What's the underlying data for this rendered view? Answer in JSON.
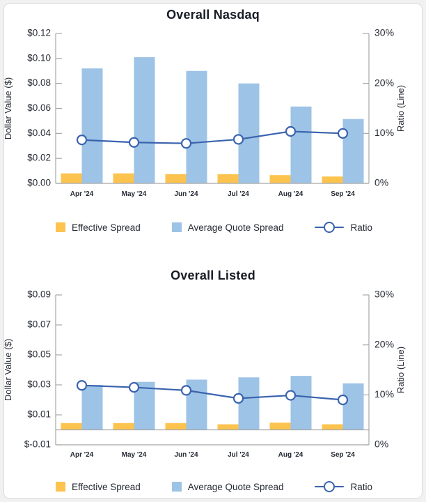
{
  "style": {
    "axis_color": "#a8a8a8",
    "tick_text_color": "#262b35",
    "x_label_color": "#262b35",
    "title_color": "#171c26",
    "panel_background": "#ffffff",
    "page_background": "#f1f1f2"
  },
  "chart_data": [
    {
      "type": "bar",
      "title": "Overall Nasdaq",
      "categories": [
        "Apr '24",
        "May '24",
        "Jun '24",
        "Jul '24",
        "Aug '24",
        "Sep '24"
      ],
      "series": [
        {
          "name": "Effective Spread",
          "type": "bar",
          "axis": "left",
          "color": "#fcc34f",
          "values": [
            0.008,
            0.008,
            0.0074,
            0.0074,
            0.0066,
            0.0055
          ]
        },
        {
          "name": "Average Quote Spread",
          "type": "bar",
          "axis": "left",
          "color": "#9dc3e6",
          "values": [
            0.092,
            0.101,
            0.09,
            0.08,
            0.0615,
            0.0515
          ]
        },
        {
          "name": "Ratio",
          "type": "line",
          "axis": "right",
          "marker": "circle",
          "color": "#3a63ae",
          "values": [
            8.7,
            8.2,
            8.0,
            8.8,
            10.4,
            10.0
          ]
        }
      ],
      "left_axis": {
        "title": "Dollar Value ($)",
        "min": 0,
        "max": 0.12,
        "tick_values": [
          0.12,
          0.1,
          0.08,
          0.06,
          0.04,
          0.02,
          0
        ],
        "tick_labels": [
          "$0.12",
          "$0.10",
          "$0.08",
          "$0.06",
          "$0.04",
          "$0.02",
          "$0.00"
        ]
      },
      "right_axis": {
        "title": "Ratio (Line)",
        "min": 0,
        "max": 30,
        "tick_values": [
          30,
          20,
          10,
          0
        ],
        "tick_labels": [
          "30%",
          "20%",
          "10%",
          "0%"
        ]
      },
      "grid": false,
      "legend_position": "bottom"
    },
    {
      "type": "bar",
      "title": "Overall Listed",
      "categories": [
        "Apr '24",
        "May '24",
        "Jun '24",
        "Jul '24",
        "Aug '24",
        "Sep '24"
      ],
      "series": [
        {
          "name": "Effective Spread",
          "type": "bar",
          "axis": "left",
          "color": "#fcc34f",
          "values": [
            0.0045,
            0.0045,
            0.0045,
            0.0037,
            0.0048,
            0.0037
          ]
        },
        {
          "name": "Average Quote Spread",
          "type": "bar",
          "axis": "left",
          "color": "#9dc3e6",
          "values": [
            0.03,
            0.032,
            0.0335,
            0.035,
            0.036,
            0.031
          ]
        },
        {
          "name": "Ratio",
          "type": "line",
          "axis": "right",
          "marker": "circle",
          "color": "#3a63ae",
          "values": [
            11.9,
            11.5,
            10.9,
            9.3,
            9.9,
            9.0
          ]
        }
      ],
      "left_axis": {
        "title": "Dollar Value ($)",
        "min": -0.01,
        "max": 0.09,
        "tick_values": [
          0.09,
          0.07,
          0.05,
          0.03,
          0.01,
          -0.01
        ],
        "tick_labels": [
          "$0.09",
          "$0.07",
          "$0.05",
          "$0.03",
          "$0.01",
          "$-0.01"
        ]
      },
      "right_axis": {
        "title": "Ratio (Line)",
        "min": 0,
        "max": 30,
        "tick_values": [
          30,
          20,
          10,
          0
        ],
        "tick_labels": [
          "30%",
          "20%",
          "10%",
          "0%"
        ]
      },
      "grid": false,
      "legend_position": "bottom"
    }
  ]
}
